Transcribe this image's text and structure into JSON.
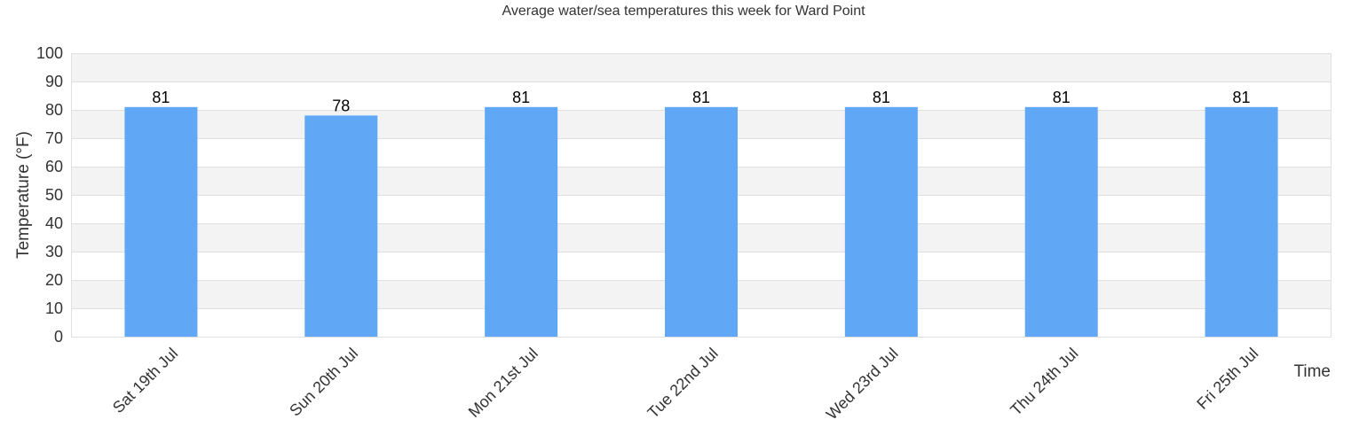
{
  "chart_data": {
    "type": "bar",
    "title": "Average water/sea temperatures this week for Ward Point",
    "xlabel": "Time",
    "ylabel": "Temperature (°F)",
    "ylim": [
      0,
      100
    ],
    "yticks": [
      0,
      10,
      20,
      30,
      40,
      50,
      60,
      70,
      80,
      90,
      100
    ],
    "categories": [
      "Sat 19th Jul",
      "Sun 20th Jul",
      "Mon 21st Jul",
      "Tue 22nd Jul",
      "Wed 23rd Jul",
      "Thu 24th Jul",
      "Fri 25th Jul"
    ],
    "values": [
      81,
      78,
      81,
      81,
      81,
      81,
      81
    ],
    "data_labels": [
      "81",
      "78",
      "81",
      "81",
      "81",
      "81",
      "81"
    ],
    "grid": true,
    "legend": "none",
    "colors": {
      "bar": "#60a8f5",
      "band_alt": "#f3f3f3",
      "band": "#ffffff",
      "gridline": "#e0e0e0",
      "text": "#333333"
    }
  }
}
